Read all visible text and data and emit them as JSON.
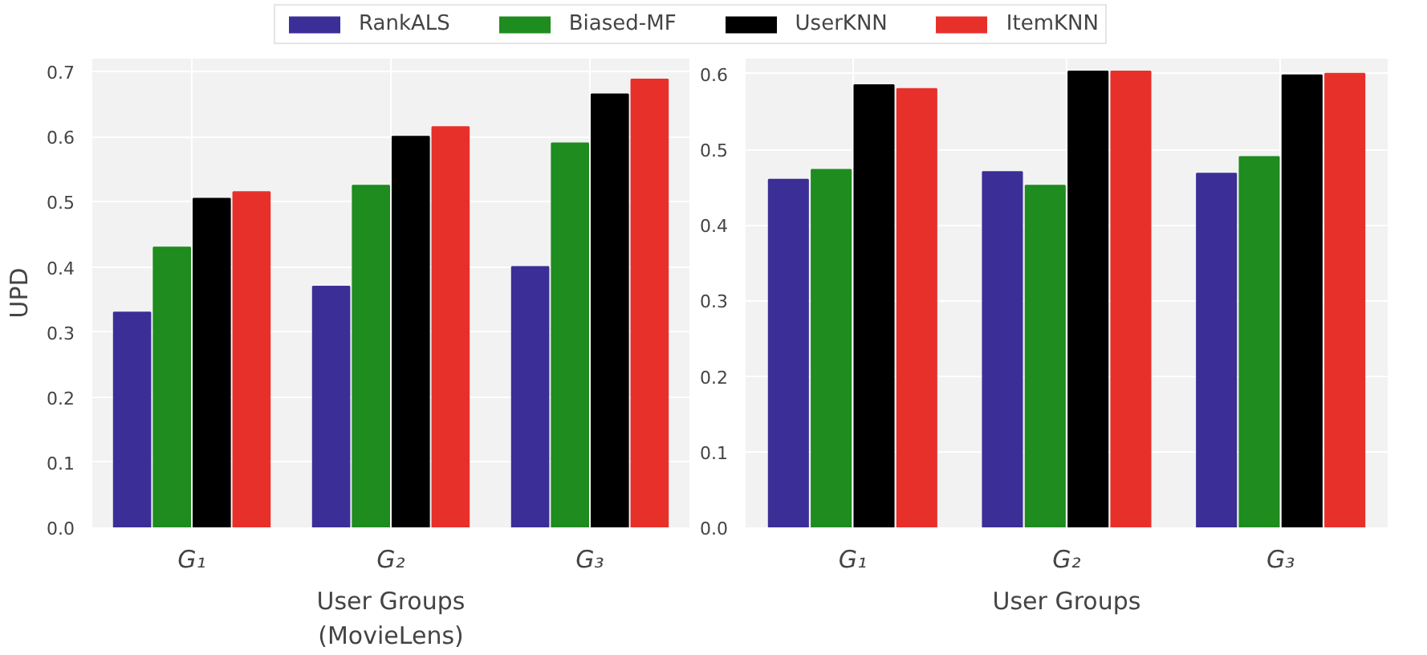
{
  "chart_data": [
    {
      "type": "bar",
      "ylabel": "UPD",
      "xlabel": "User Groups\n(MovieLens)",
      "categories": [
        "G₁",
        "G₂",
        "G₃"
      ],
      "series": [
        {
          "name": "RankALS",
          "color": "#3b2f97",
          "values": [
            0.33,
            0.37,
            0.4
          ]
        },
        {
          "name": "Biased-MF",
          "color": "#1e8c1e",
          "values": [
            0.43,
            0.525,
            0.59
          ]
        },
        {
          "name": "UserKNN",
          "color": "#000000",
          "values": [
            0.505,
            0.6,
            0.665
          ]
        },
        {
          "name": "ItemKNN",
          "color": "#e8302a",
          "values": [
            0.515,
            0.615,
            0.688
          ]
        }
      ],
      "ylim": [
        0,
        0.72
      ],
      "yticks": [
        {
          "value": 0,
          "label": "0.0"
        },
        0.1,
        0.2,
        0.3,
        0.4,
        0.5,
        0.6,
        0.7
      ],
      "grid": true,
      "legend": "top"
    },
    {
      "type": "bar",
      "xlabel": "User Groups",
      "categories": [
        "G₁",
        "G₂",
        "G₃"
      ],
      "series": [
        {
          "color": "#3b2f97",
          "values": [
            0.46,
            0.47,
            0.468
          ]
        },
        {
          "color": "#1e8c1e",
          "values": [
            0.473,
            0.452,
            0.49
          ]
        },
        {
          "color": "#000000",
          "values": [
            0.585,
            0.603,
            0.598
          ]
        },
        {
          "color": "#e8302a",
          "values": [
            0.58,
            0.603,
            0.6
          ]
        }
      ],
      "ylim": [
        0,
        0.62
      ],
      "yticks": [
        {
          "value": 0,
          "label": "0.0"
        },
        0.1,
        0.2,
        0.3,
        0.4,
        0.5,
        0.6
      ],
      "grid": true
    }
  ]
}
